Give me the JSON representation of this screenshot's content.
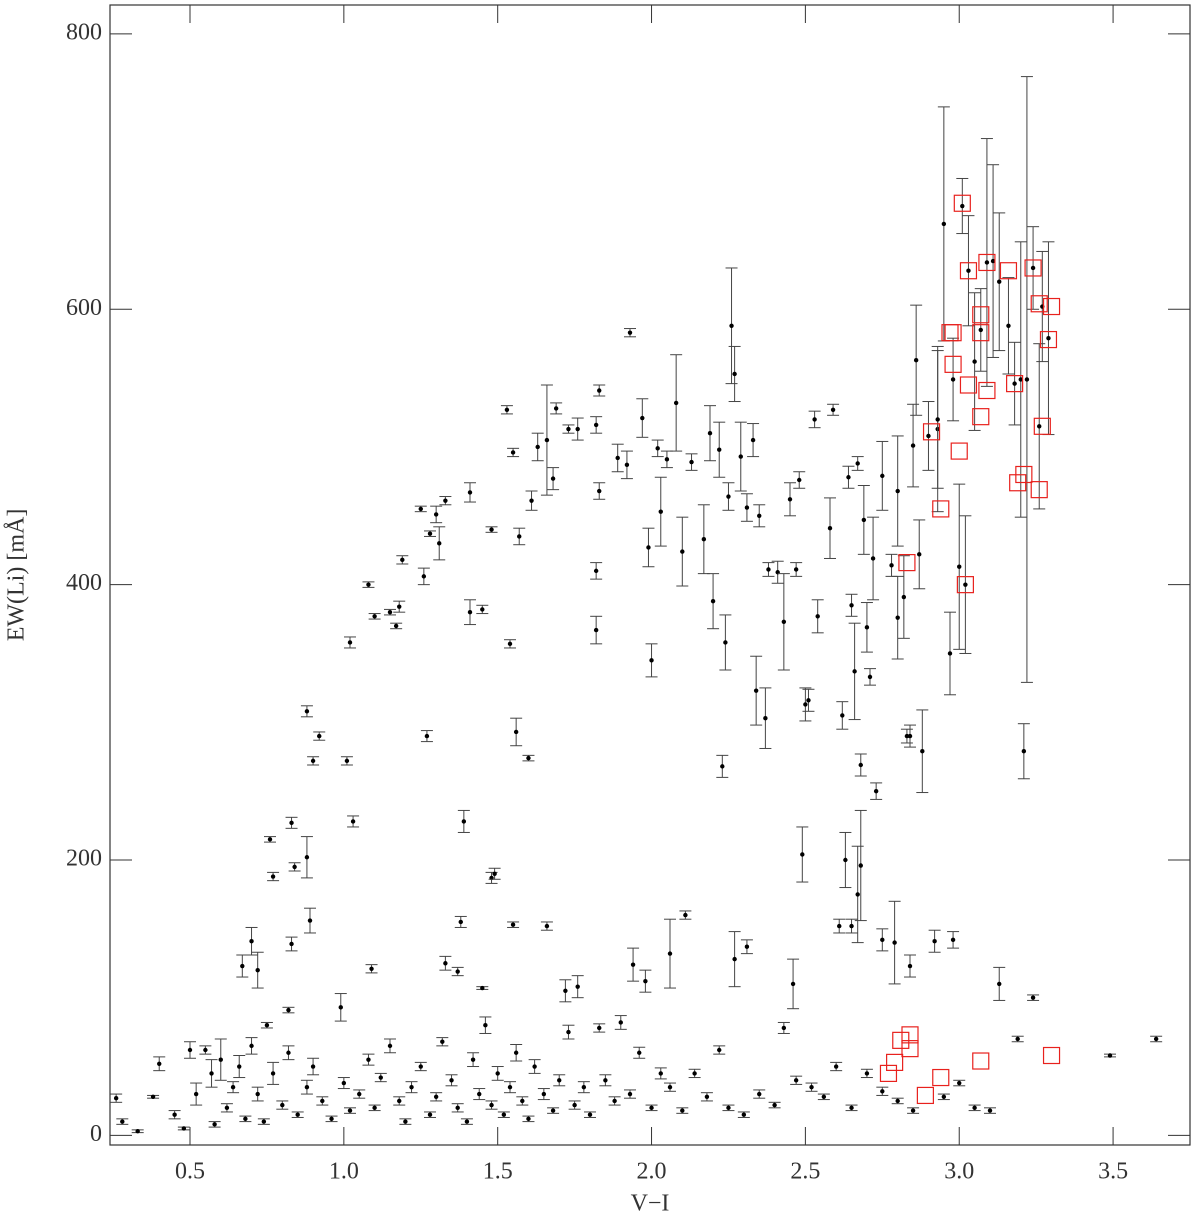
{
  "chart_data": {
    "type": "scatter",
    "xlabel": "V−I",
    "ylabel": "EW(Li) [mÅ]",
    "xlim": [
      0.24,
      3.75
    ],
    "ylim": [
      -7,
      821
    ],
    "xticks": [
      0.5,
      {
        "value": 1.0,
        "label": "1.0"
      },
      1.5,
      {
        "value": 2.0,
        "label": "2.0"
      },
      2.5,
      {
        "value": 3.0,
        "label": "3.0"
      },
      3.5
    ],
    "yticks": [
      0,
      200,
      400,
      600,
      800
    ],
    "series": [
      {
        "color": "#000000",
        "marker": "dot",
        "x": [
          0.88,
          0.9,
          0.92,
          1.01,
          1.02,
          1.03,
          1.08,
          1.1,
          1.15,
          1.17,
          1.18,
          1.19,
          1.25,
          1.26,
          1.27,
          1.28,
          1.3,
          1.31,
          1.33,
          1.39,
          1.41,
          1.41,
          1.45,
          1.48,
          1.48,
          1.53,
          1.54,
          1.55,
          1.56,
          1.57,
          1.6,
          1.61,
          1.63,
          1.66,
          1.68,
          1.69,
          1.73,
          1.76,
          1.82,
          1.82,
          1.82,
          1.83,
          1.83,
          1.89,
          1.92,
          1.93,
          1.97,
          1.99,
          2.0,
          2.02,
          2.03,
          2.05,
          2.08,
          2.1,
          2.13,
          2.17,
          2.19,
          2.2,
          2.22,
          2.23,
          2.24,
          2.25,
          2.26,
          2.27,
          2.29,
          2.31,
          2.33,
          2.34,
          2.35,
          2.37,
          2.38,
          2.41,
          2.43,
          2.45,
          2.47,
          2.48,
          2.5,
          2.51,
          2.53,
          2.54,
          2.58,
          2.59,
          2.62,
          2.64,
          2.65,
          2.66,
          2.67,
          2.68,
          2.69,
          2.7,
          2.71,
          2.72,
          2.73,
          2.75,
          2.78,
          2.8,
          2.8,
          2.82,
          2.84,
          2.85,
          2.86,
          2.87,
          2.88,
          2.9,
          2.93,
          2.95,
          2.97,
          2.98,
          3.0,
          3.01,
          3.03,
          3.05,
          3.07,
          3.09,
          3.11,
          3.13,
          3.16,
          3.18,
          3.2,
          3.22,
          3.24,
          3.26,
          3.27,
          3.29,
          3.21,
          2.93,
          3.02,
          0.67,
          0.7,
          0.72,
          0.76,
          0.77,
          0.82,
          0.83,
          0.83,
          0.84,
          0.88,
          0.89,
          0.99,
          1.09,
          1.33,
          1.37,
          1.38,
          1.45,
          1.49,
          1.55,
          1.66,
          1.72,
          1.76,
          1.94,
          1.98,
          2.06,
          2.11,
          2.27,
          2.31,
          2.46,
          2.49,
          2.61,
          2.63,
          2.65,
          2.67,
          2.68,
          2.75,
          2.79,
          2.83,
          2.84,
          2.92,
          2.98,
          3.13,
          3.24,
          3.19,
          3.49,
          3.64,
          0.26,
          0.28,
          0.33,
          0.38,
          0.4,
          0.45,
          0.48,
          0.5,
          0.52,
          0.55,
          0.57,
          0.58,
          0.6,
          0.62,
          0.64,
          0.66,
          0.68,
          0.7,
          0.72,
          0.74,
          0.75,
          0.77,
          0.8,
          0.82,
          0.85,
          0.88,
          0.9,
          0.93,
          0.96,
          1.0,
          1.02,
          1.05,
          1.08,
          1.1,
          1.12,
          1.15,
          1.18,
          1.2,
          1.22,
          1.25,
          1.28,
          1.3,
          1.32,
          1.35,
          1.37,
          1.4,
          1.42,
          1.44,
          1.46,
          1.48,
          1.5,
          1.52,
          1.54,
          1.56,
          1.58,
          1.6,
          1.62,
          1.65,
          1.68,
          1.7,
          1.73,
          1.75,
          1.78,
          1.8,
          1.83,
          1.85,
          1.88,
          1.9,
          1.93,
          1.96,
          2.0,
          2.03,
          2.06,
          2.1,
          2.14,
          2.18,
          2.22,
          2.25,
          2.3,
          2.35,
          2.4,
          2.43,
          2.47,
          2.52,
          2.56,
          2.6,
          2.65,
          2.7,
          2.75,
          2.8,
          2.85,
          2.95,
          3.0,
          3.05,
          3.1
        ],
        "values": [
          308,
          272,
          290,
          272,
          358,
          228,
          400,
          377,
          380,
          370,
          384,
          418,
          455,
          406,
          290,
          437,
          451,
          430,
          461,
          228,
          467,
          380,
          382,
          440,
          187,
          527,
          357,
          496,
          293,
          435,
          274,
          461,
          500,
          505,
          477,
          528,
          513,
          513,
          516,
          410,
          367,
          541,
          468,
          492,
          487,
          583,
          521,
          427,
          345,
          499,
          453,
          491,
          532,
          424,
          489,
          433,
          510,
          388,
          498,
          268,
          358,
          464,
          588,
          553,
          493,
          456,
          505,
          323,
          450,
          303,
          411,
          409,
          373,
          462,
          411,
          476,
          313,
          316,
          520,
          377,
          441,
          527,
          305,
          478,
          385,
          337,
          488,
          269,
          447,
          369,
          333,
          419,
          250,
          479,
          414,
          376,
          468,
          391,
          290,
          501,
          563,
          422,
          279,
          508,
          513,
          662,
          350,
          549,
          413,
          675,
          628,
          562,
          585,
          634,
          635,
          620,
          588,
          546,
          549,
          549,
          630,
          515,
          602,
          579,
          279,
          520,
          400,
          123,
          141,
          120,
          215,
          188,
          91,
          227,
          139,
          195,
          202,
          156,
          93,
          121,
          125,
          119,
          155,
          107,
          190,
          153,
          152,
          105,
          108,
          124,
          112,
          132,
          160,
          128,
          137,
          110,
          204,
          152,
          200,
          152,
          175,
          196,
          142,
          140,
          290,
          123,
          141,
          142,
          110,
          100,
          70,
          58,
          70,
          27,
          10,
          3,
          28,
          52,
          15,
          5,
          62,
          30,
          62,
          45,
          8,
          55,
          20,
          35,
          50,
          12,
          65,
          30,
          10,
          80,
          45,
          22,
          60,
          15,
          35,
          50,
          25,
          12,
          38,
          18,
          30,
          55,
          20,
          42,
          65,
          25,
          10,
          35,
          50,
          15,
          28,
          68,
          40,
          20,
          10,
          55,
          30,
          80,
          22,
          45,
          15,
          35,
          60,
          25,
          12,
          50,
          30,
          18,
          40,
          75,
          22,
          35,
          15,
          78,
          40,
          25,
          82,
          30,
          60,
          20,
          45,
          35,
          18,
          45,
          28,
          62,
          20,
          15,
          30,
          22,
          78,
          40,
          35,
          28,
          50,
          20,
          45,
          32,
          25,
          18,
          28,
          38,
          20,
          18
        ],
        "errors": [
          4,
          3,
          3,
          3,
          4,
          4,
          2,
          2,
          2,
          2,
          4,
          3,
          2,
          6,
          4,
          2,
          6,
          12,
          3,
          8,
          7,
          9,
          3,
          2,
          4,
          3,
          3,
          3,
          10,
          6,
          2,
          7,
          10,
          40,
          8,
          4,
          3,
          8,
          6,
          6,
          10,
          4,
          6,
          10,
          10,
          3,
          14,
          14,
          12,
          6,
          25,
          6,
          35,
          25,
          6,
          25,
          20,
          20,
          20,
          8,
          20,
          10,
          42,
          20,
          25,
          10,
          12,
          25,
          8,
          22,
          5,
          8,
          35,
          12,
          5,
          6,
          12,
          8,
          6,
          12,
          22,
          4,
          10,
          8,
          8,
          35,
          5,
          8,
          25,
          18,
          6,
          30,
          6,
          25,
          8,
          30,
          40,
          30,
          8,
          30,
          40,
          25,
          30,
          25,
          60,
          85,
          30,
          30,
          60,
          20,
          40,
          50,
          30,
          90,
          70,
          50,
          35,
          30,
          100,
          220,
          30,
          60,
          40,
          70,
          20,
          50,
          50,
          8,
          10,
          13,
          2,
          3,
          2,
          4,
          5,
          3,
          15,
          9,
          10,
          3,
          5,
          3,
          4,
          1,
          4,
          2,
          3,
          8,
          8,
          12,
          8,
          25,
          3,
          20,
          5,
          18,
          20,
          5,
          20,
          5,
          35,
          40,
          8,
          30,
          5,
          8,
          8,
          6,
          12,
          2,
          2,
          1,
          2,
          3,
          2,
          1,
          1,
          5,
          3,
          1,
          6,
          8,
          3,
          10,
          2,
          15,
          3,
          4,
          8,
          2,
          6,
          5,
          2,
          2,
          8,
          3,
          5,
          2,
          5,
          6,
          3,
          2,
          4,
          2,
          3,
          4,
          2,
          3,
          5,
          3,
          2,
          4,
          3,
          2,
          3,
          3,
          4,
          3,
          2,
          5,
          4,
          6,
          3,
          5,
          2,
          4,
          6,
          3,
          2,
          5,
          4,
          2,
          4,
          5,
          3,
          4,
          2,
          3,
          4,
          3,
          5,
          3,
          4,
          2,
          4,
          3,
          2,
          3,
          3,
          3,
          2,
          2,
          3,
          2,
          4,
          3,
          3,
          2,
          3,
          2,
          3,
          3,
          2,
          2,
          2,
          2,
          2,
          2
        ]
      },
      {
        "color": "#e8211d",
        "marker": "square-open",
        "x": [
          3.01,
          3.03,
          3.09,
          3.16,
          3.24,
          2.97,
          2.98,
          3.07,
          3.07,
          3.26,
          3.3,
          3.29,
          2.98,
          3.03,
          3.09,
          3.18,
          2.91,
          3.0,
          3.07,
          3.27,
          3.21,
          3.19,
          3.26,
          2.94,
          2.83,
          3.02,
          2.84,
          2.81,
          2.84,
          2.79,
          2.77,
          2.94,
          2.89,
          3.07,
          3.3
        ],
        "values": [
          677,
          628,
          634,
          628,
          630,
          583,
          583,
          596,
          583,
          604,
          602,
          578,
          560,
          545,
          541,
          546,
          511,
          497,
          522,
          515,
          480,
          474,
          469,
          455,
          416,
          400,
          73,
          69,
          63,
          53,
          45,
          42,
          29,
          54,
          58
        ]
      }
    ]
  }
}
